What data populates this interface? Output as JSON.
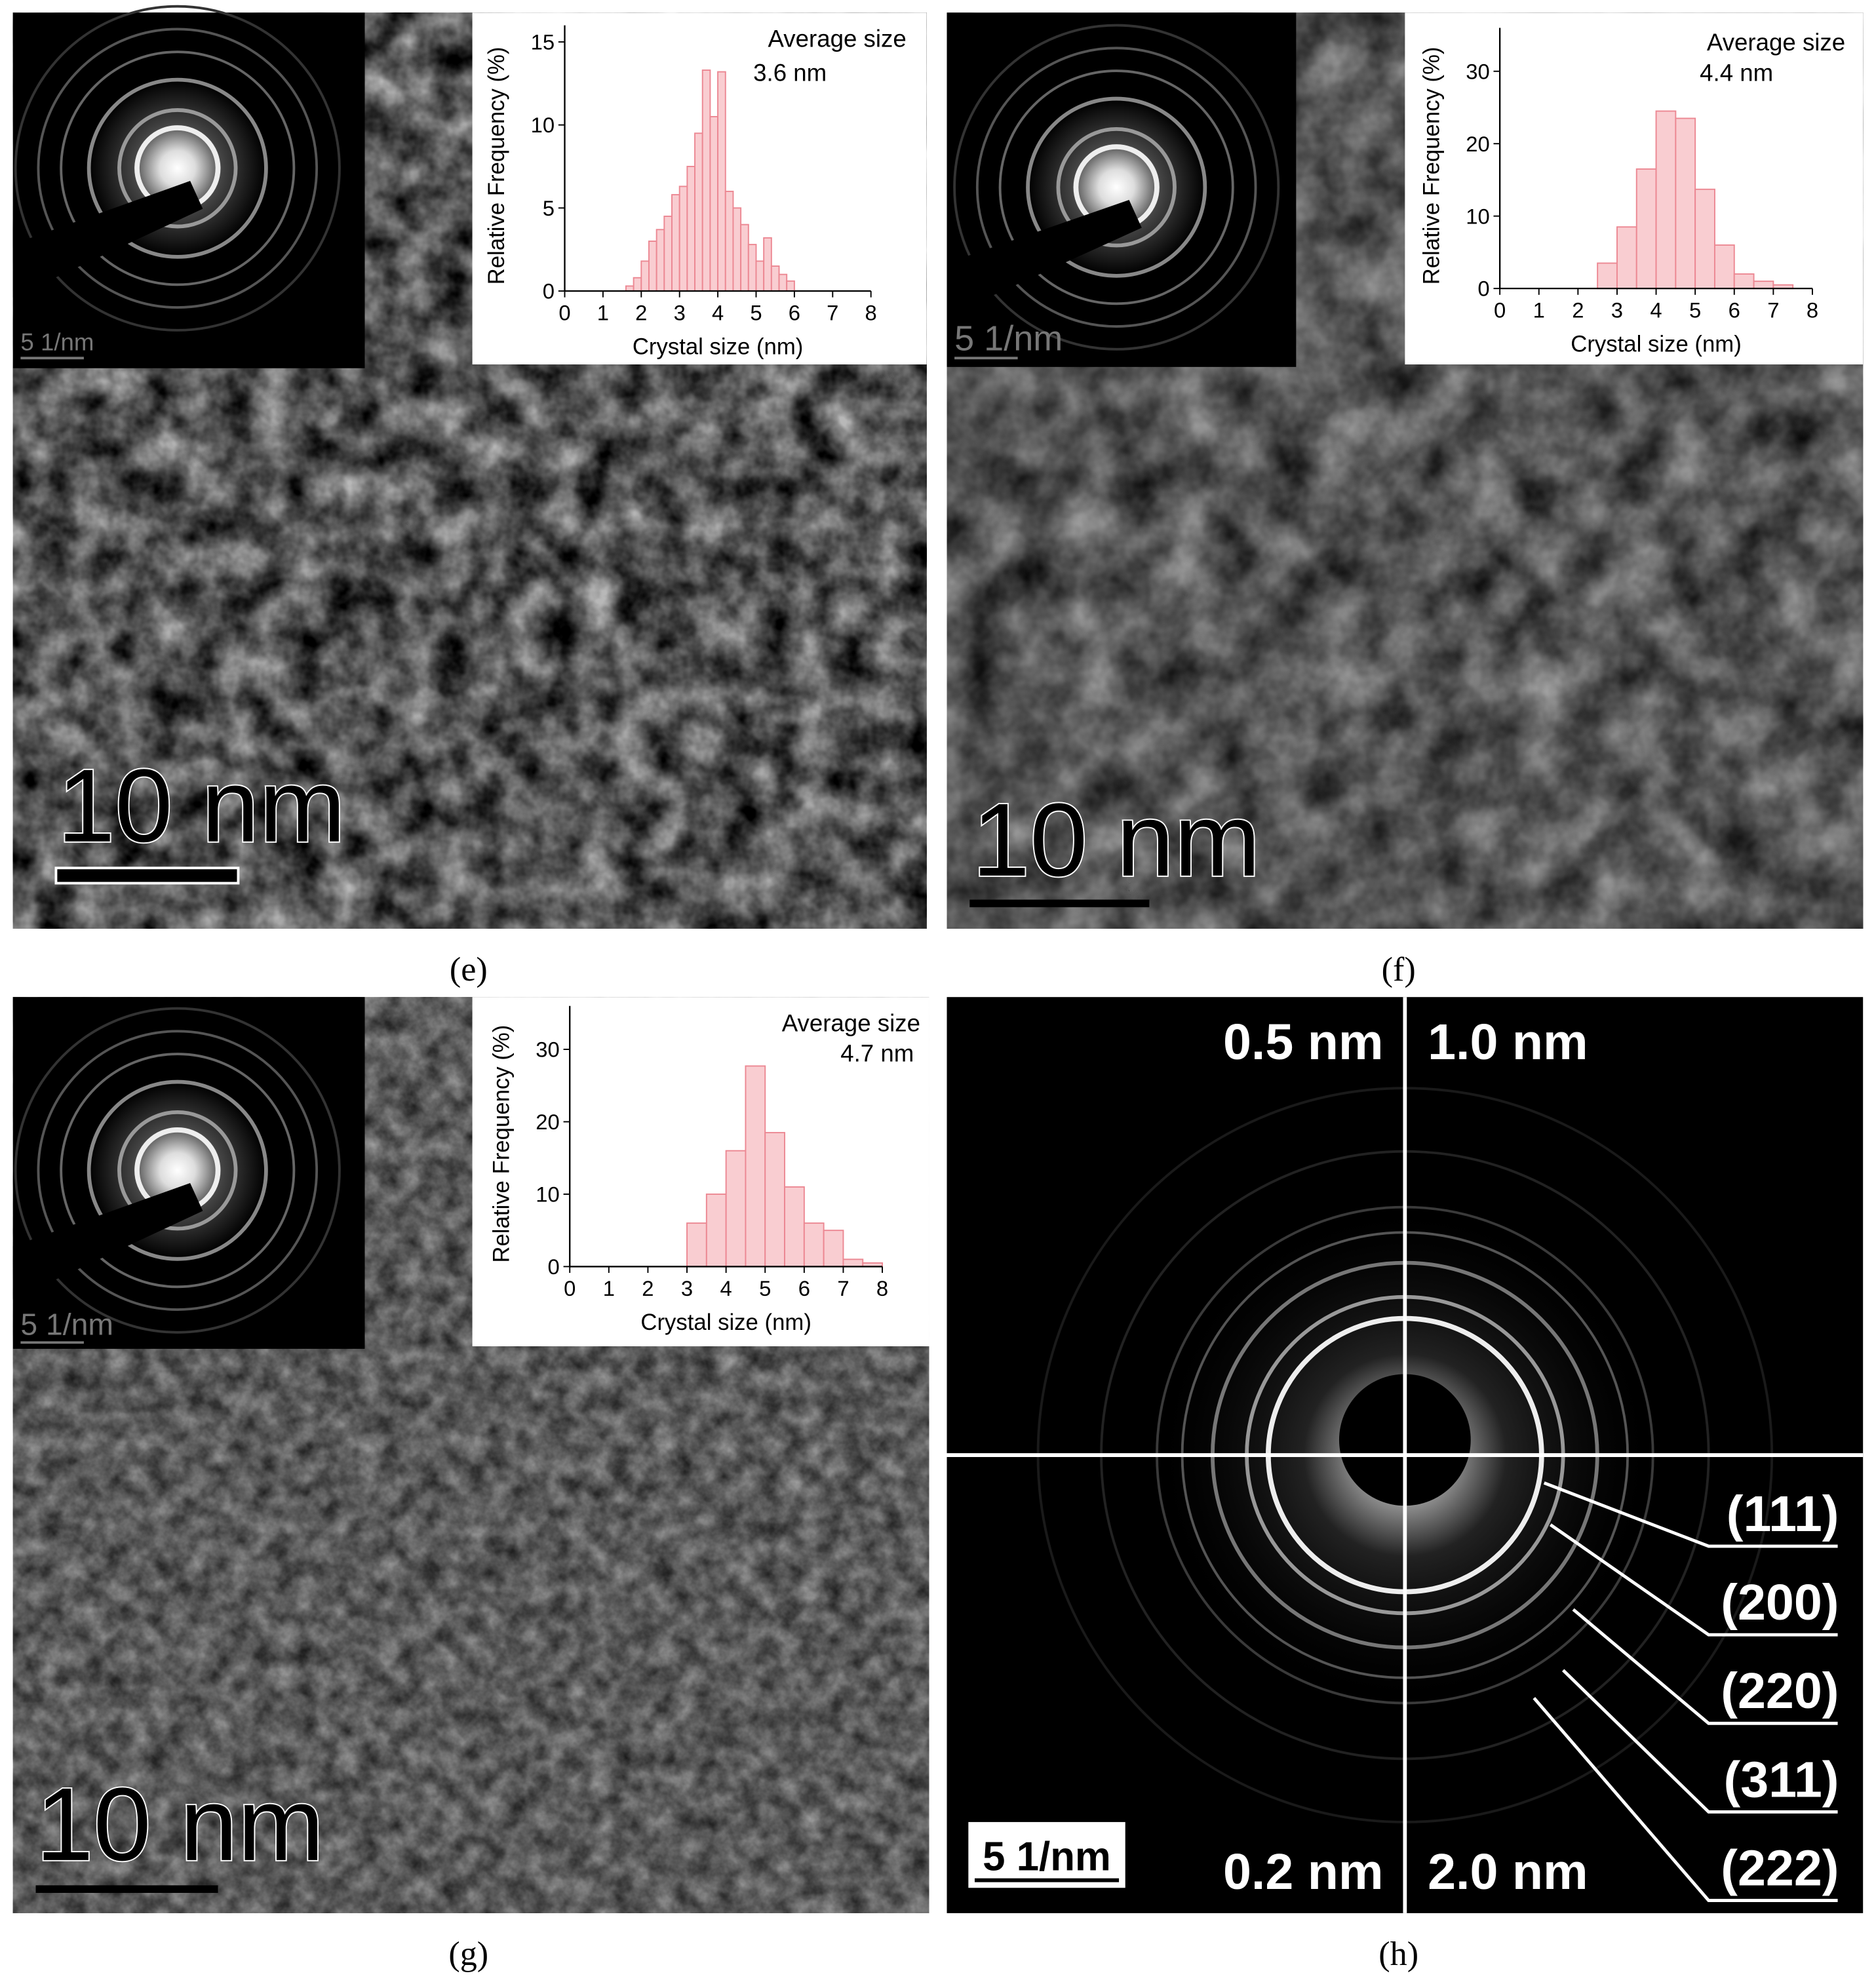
{
  "chart_data": [
    {
      "type": "histogram",
      "xlabel": "Crystal size (nm)",
      "ylabel": "Relative Frequency (%)",
      "annotations": [
        "Average size",
        "3.6 nm"
      ],
      "bins": [
        1.6,
        1.8,
        2.0,
        2.2,
        2.4,
        2.6,
        2.8,
        3.0,
        3.2,
        3.4,
        3.6,
        3.8,
        4.0,
        4.2,
        4.4,
        4.6,
        4.8,
        5.0,
        5.2,
        5.4,
        5.6,
        5.8,
        6.0
      ],
      "values": [
        0.3,
        0.8,
        1.8,
        3.0,
        3.7,
        4.5,
        5.8,
        6.3,
        7.5,
        9.5,
        13.3,
        10.5,
        13.2,
        6.0,
        5.0,
        4.0,
        2.8,
        1.8,
        3.2,
        1.5,
        1.0,
        0.6
      ],
      "color": "#f9cdd1",
      "edgecolor": "#ec8893",
      "xlim": [
        0,
        8
      ],
      "ylim": [
        0,
        16
      ],
      "xticks": [
        0,
        1,
        2,
        3,
        4,
        5,
        6,
        7,
        8
      ],
      "yticks": [
        0,
        5,
        10,
        15
      ]
    },
    {
      "type": "histogram",
      "xlabel": "Crystal size (nm)",
      "ylabel": "Relative Frequency (%)",
      "annotations": [
        "Average size",
        "4.4 nm"
      ],
      "bins": [
        2.5,
        3.0,
        3.5,
        4.0,
        4.5,
        5.0,
        5.5,
        6.0,
        6.5,
        7.0,
        7.5
      ],
      "values": [
        3.5,
        8.5,
        16.5,
        24.5,
        23.5,
        13.7,
        6.0,
        2.0,
        1.0,
        0.5
      ],
      "color": "#f9cdd1",
      "edgecolor": "#ec8893",
      "xlim": [
        0,
        8
      ],
      "ylim": [
        0,
        36
      ],
      "xticks": [
        0,
        1,
        2,
        3,
        4,
        5,
        6,
        7,
        8
      ],
      "yticks": [
        0,
        10,
        20,
        30
      ]
    },
    {
      "type": "histogram",
      "xlabel": "Crystal size (nm)",
      "ylabel": "Relative Frequency (%)",
      "annotations": [
        "Average size",
        "4.7 nm"
      ],
      "bins": [
        3.0,
        3.5,
        4.0,
        4.5,
        5.0,
        5.5,
        6.0,
        6.5,
        7.0,
        7.5,
        8.0
      ],
      "values": [
        6.0,
        10.0,
        16.0,
        27.7,
        18.5,
        11.0,
        6.0,
        5.0,
        1.0,
        0.5
      ],
      "color": "#f9cdd1",
      "edgecolor": "#ec8893",
      "xlim": [
        0,
        8
      ],
      "ylim": [
        0,
        36
      ],
      "xticks": [
        0,
        1,
        2,
        3,
        4,
        5,
        6,
        7,
        8
      ],
      "yticks": [
        0,
        10,
        20,
        30
      ]
    }
  ],
  "panels": [
    {
      "label": "(e)",
      "scale_bar": "10 nm",
      "inset_scale": "5 1/nm"
    },
    {
      "label": "(f)",
      "scale_bar": "10 nm",
      "inset_scale": "5 1/nm"
    },
    {
      "label": "(g)",
      "scale_bar": "10 nm",
      "inset_scale": "5 1/nm"
    },
    {
      "label": "(h)",
      "scale_bar": "5 1/nm",
      "quadrants": [
        "0.5 nm",
        "1.0 nm",
        "0.2 nm",
        "2.0 nm"
      ],
      "planes": [
        "(111)",
        "(200)",
        "(220)",
        "(311)",
        "(222)"
      ]
    }
  ]
}
